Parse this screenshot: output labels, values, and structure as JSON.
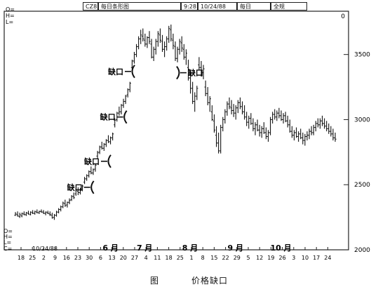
{
  "header": {
    "symbol": "CZ8",
    "chart_name": "每日条形图",
    "time": "9:28",
    "date": "10/24/88",
    "period": "每日",
    "scope": "全规",
    "corner_value": "0"
  },
  "top_left_labels": [
    "O=",
    "H=",
    "L="
  ],
  "bottom_left_labels": [
    "O=",
    "H=",
    "L=",
    "C="
  ],
  "bottom_left_date": "10/24/88",
  "gap_label": "缺口",
  "caption": {
    "fig": "图",
    "title": "价格缺口"
  },
  "chart_data": {
    "type": "bar",
    "subtype": "ohlc-daily",
    "title": "每日条形图",
    "ylim": [
      2000,
      3800
    ],
    "y_ticks": [
      2000,
      2500,
      3000,
      3500
    ],
    "x_tick_labels": [
      "18",
      "25",
      "2",
      "9",
      "16",
      "23",
      "30",
      "6",
      "13",
      "20",
      "27",
      "4",
      "11",
      "18",
      "25",
      "1",
      "8",
      "15",
      "22",
      "29",
      "5",
      "12",
      "19",
      "26",
      "3",
      "10",
      "17",
      "24"
    ],
    "month_labels": [
      "6 月",
      "7 月",
      "8 月",
      "9 月",
      "10 月"
    ],
    "month_label_at_tick": [
      8,
      11,
      15,
      19,
      23
    ],
    "gap_annotations": [
      {
        "label": "缺口",
        "at_tick": 6.4,
        "price": 2480
      },
      {
        "label": "缺口",
        "at_tick": 7.9,
        "price": 2680
      },
      {
        "label": "缺口",
        "at_tick": 9.3,
        "price": 3020
      },
      {
        "label": "缺口",
        "at_tick": 10.0,
        "price": 3370
      },
      {
        "label": "缺口",
        "at_tick": 13.7,
        "price": 3360
      }
    ],
    "bars": [
      [
        2265,
        2290,
        2260,
        2275
      ],
      [
        2270,
        2295,
        2255,
        2260
      ],
      [
        2255,
        2285,
        2245,
        2270
      ],
      [
        2260,
        2285,
        2250,
        2280
      ],
      [
        2275,
        2295,
        2265,
        2270
      ],
      [
        2270,
        2290,
        2260,
        2285
      ],
      [
        2280,
        2300,
        2270,
        2275
      ],
      [
        2270,
        2295,
        2265,
        2290
      ],
      [
        2285,
        2305,
        2275,
        2280
      ],
      [
        2280,
        2300,
        2270,
        2295
      ],
      [
        2290,
        2310,
        2280,
        2285
      ],
      [
        2285,
        2300,
        2275,
        2295
      ],
      [
        2295,
        2310,
        2285,
        2290
      ],
      [
        2290,
        2305,
        2275,
        2280
      ],
      [
        2280,
        2295,
        2265,
        2290
      ],
      [
        2285,
        2300,
        2275,
        2280
      ],
      [
        2275,
        2295,
        2260,
        2270
      ],
      [
        2265,
        2285,
        2240,
        2245
      ],
      [
        2250,
        2275,
        2230,
        2265
      ],
      [
        2265,
        2300,
        2255,
        2290
      ],
      [
        2290,
        2320,
        2280,
        2310
      ],
      [
        2310,
        2340,
        2295,
        2330
      ],
      [
        2330,
        2370,
        2320,
        2360
      ],
      [
        2355,
        2385,
        2330,
        2340
      ],
      [
        2345,
        2370,
        2325,
        2365
      ],
      [
        2365,
        2395,
        2350,
        2380
      ],
      [
        2385,
        2420,
        2375,
        2410
      ],
      [
        2410,
        2440,
        2390,
        2400
      ],
      [
        2430,
        2470,
        2415,
        2460
      ],
      [
        2450,
        2480,
        2420,
        2440
      ],
      [
        2440,
        2475,
        2425,
        2470
      ],
      [
        2465,
        2500,
        2450,
        2490
      ],
      [
        2520,
        2560,
        2505,
        2545
      ],
      [
        2545,
        2580,
        2530,
        2570
      ],
      [
        2570,
        2610,
        2555,
        2600
      ],
      [
        2600,
        2640,
        2580,
        2590
      ],
      [
        2590,
        2625,
        2575,
        2615
      ],
      [
        2620,
        2660,
        2600,
        2650
      ],
      [
        2720,
        2760,
        2700,
        2745
      ],
      [
        2750,
        2800,
        2735,
        2790
      ],
      [
        2790,
        2830,
        2770,
        2780
      ],
      [
        2780,
        2820,
        2760,
        2810
      ],
      [
        2810,
        2850,
        2790,
        2840
      ],
      [
        2840,
        2880,
        2820,
        2830
      ],
      [
        2830,
        2870,
        2810,
        2860
      ],
      [
        2860,
        2900,
        2840,
        2890
      ],
      [
        2960,
        3010,
        2940,
        2995
      ],
      [
        3000,
        3060,
        2985,
        3050
      ],
      [
        3050,
        3100,
        3030,
        3060
      ],
      [
        3060,
        3120,
        3040,
        3110
      ],
      [
        3110,
        3160,
        3090,
        3140
      ],
      [
        3140,
        3190,
        3120,
        3180
      ],
      [
        3190,
        3240,
        3170,
        3230
      ],
      [
        3230,
        3290,
        3210,
        3280
      ],
      [
        3400,
        3460,
        3390,
        3450
      ],
      [
        3450,
        3520,
        3430,
        3500
      ],
      [
        3500,
        3580,
        3480,
        3560
      ],
      [
        3560,
        3640,
        3540,
        3620
      ],
      [
        3620,
        3690,
        3580,
        3650
      ],
      [
        3640,
        3700,
        3600,
        3620
      ],
      [
        3610,
        3660,
        3560,
        3580
      ],
      [
        3580,
        3640,
        3550,
        3630
      ],
      [
        3630,
        3680,
        3580,
        3600
      ],
      [
        3580,
        3620,
        3470,
        3480
      ],
      [
        3480,
        3560,
        3450,
        3540
      ],
      [
        3540,
        3620,
        3500,
        3600
      ],
      [
        3600,
        3680,
        3560,
        3660
      ],
      [
        3650,
        3700,
        3590,
        3610
      ],
      [
        3600,
        3650,
        3520,
        3540
      ],
      [
        3540,
        3600,
        3480,
        3560
      ],
      [
        3560,
        3640,
        3530,
        3620
      ],
      [
        3620,
        3720,
        3590,
        3700
      ],
      [
        3690,
        3730,
        3600,
        3620
      ],
      [
        3610,
        3660,
        3540,
        3570
      ],
      [
        3560,
        3600,
        3450,
        3470
      ],
      [
        3470,
        3560,
        3440,
        3540
      ],
      [
        3540,
        3620,
        3500,
        3600
      ],
      [
        3590,
        3640,
        3520,
        3550
      ],
      [
        3540,
        3580,
        3460,
        3480
      ],
      [
        3480,
        3540,
        3420,
        3510
      ],
      [
        3400,
        3460,
        3300,
        3320
      ],
      [
        3320,
        3380,
        3200,
        3240
      ],
      [
        3240,
        3290,
        3120,
        3140
      ],
      [
        3140,
        3210,
        3060,
        3180
      ],
      [
        3180,
        3260,
        3150,
        3240
      ],
      [
        3420,
        3480,
        3380,
        3400
      ],
      [
        3400,
        3450,
        3330,
        3360
      ],
      [
        3360,
        3420,
        3310,
        3390
      ],
      [
        3250,
        3300,
        3180,
        3200
      ],
      [
        3200,
        3250,
        3110,
        3130
      ],
      [
        3130,
        3180,
        3060,
        3160
      ],
      [
        3060,
        3110,
        2990,
        3000
      ],
      [
        2990,
        3040,
        2900,
        2920
      ],
      [
        2880,
        2950,
        2790,
        2820
      ],
      [
        2820,
        2900,
        2740,
        2760
      ],
      [
        2760,
        2960,
        2740,
        2940
      ],
      [
        2940,
        3020,
        2910,
        3000
      ],
      [
        3000,
        3080,
        2970,
        3060
      ],
      [
        3060,
        3140,
        3030,
        3120
      ],
      [
        3120,
        3170,
        3080,
        3100
      ],
      [
        3090,
        3150,
        3040,
        3070
      ],
      [
        3070,
        3120,
        3020,
        3050
      ],
      [
        3050,
        3110,
        3000,
        3090
      ],
      [
        3090,
        3150,
        3050,
        3130
      ],
      [
        3130,
        3170,
        3080,
        3100
      ],
      [
        3100,
        3140,
        3040,
        3060
      ],
      [
        3060,
        3110,
        3000,
        3020
      ],
      [
        3020,
        3060,
        2950,
        2980
      ],
      [
        2980,
        3030,
        2930,
        3010
      ],
      [
        3010,
        3050,
        2960,
        2970
      ],
      [
        2970,
        3010,
        2910,
        2930
      ],
      [
        2930,
        2980,
        2880,
        2960
      ],
      [
        2960,
        3000,
        2910,
        2920
      ],
      [
        2920,
        2960,
        2870,
        2900
      ],
      [
        2900,
        2950,
        2860,
        2930
      ],
      [
        2930,
        2980,
        2890,
        2900
      ],
      [
        2900,
        2940,
        2850,
        2870
      ],
      [
        2870,
        2920,
        2830,
        2900
      ],
      [
        2900,
        3020,
        2880,
        3000
      ],
      [
        3000,
        3060,
        2970,
        3040
      ],
      [
        3040,
        3080,
        3000,
        3020
      ],
      [
        3020,
        3070,
        2990,
        3050
      ],
      [
        3050,
        3090,
        3010,
        3030
      ],
      [
        3030,
        3070,
        2990,
        3000
      ],
      [
        3000,
        3050,
        2970,
        3030
      ],
      [
        3030,
        3060,
        2980,
        2990
      ],
      [
        2990,
        3030,
        2940,
        2960
      ],
      [
        2960,
        3000,
        2900,
        2910
      ],
      [
        2910,
        2950,
        2860,
        2880
      ],
      [
        2880,
        2920,
        2840,
        2900
      ],
      [
        2900,
        2940,
        2860,
        2870
      ],
      [
        2870,
        2910,
        2830,
        2890
      ],
      [
        2890,
        2930,
        2850,
        2860
      ],
      [
        2860,
        2900,
        2810,
        2840
      ],
      [
        2840,
        2890,
        2800,
        2870
      ],
      [
        2870,
        2910,
        2840,
        2880
      ],
      [
        2880,
        2930,
        2850,
        2910
      ],
      [
        2910,
        2950,
        2880,
        2900
      ],
      [
        2900,
        2960,
        2880,
        2940
      ],
      [
        2940,
        2990,
        2910,
        2970
      ],
      [
        2970,
        3010,
        2940,
        2960
      ],
      [
        2960,
        3010,
        2930,
        2990
      ],
      [
        2990,
        3030,
        2950,
        2970
      ],
      [
        2970,
        3010,
        2930,
        2950
      ],
      [
        2950,
        2990,
        2910,
        2930
      ],
      [
        2930,
        2970,
        2890,
        2910
      ],
      [
        2910,
        2950,
        2870,
        2890
      ],
      [
        2890,
        2930,
        2840,
        2860
      ],
      [
        2860,
        2900,
        2830,
        2850
      ]
    ]
  }
}
